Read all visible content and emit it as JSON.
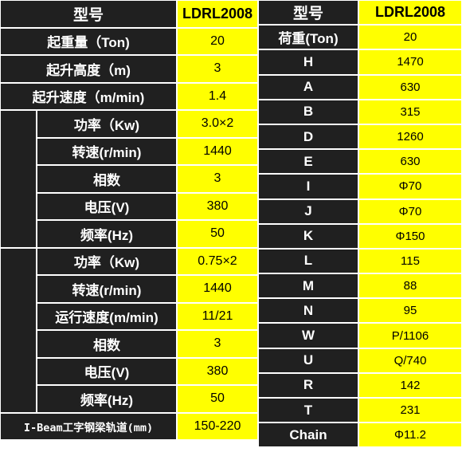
{
  "left_table": {
    "header": {
      "key": "型号",
      "value": "LDRL2008"
    },
    "top_rows": [
      {
        "key": "起重量（Ton)",
        "value": "20"
      },
      {
        "key": "起升高度（m)",
        "value": "3"
      },
      {
        "key": "起升速度（m/min)",
        "value": "1.4"
      }
    ],
    "group1_rows": [
      {
        "key": "功率（Kw)",
        "value": "3.0×2"
      },
      {
        "key": "转速(r/min)",
        "value": "1440"
      },
      {
        "key": "相数",
        "value": "3"
      },
      {
        "key": "电压(V)",
        "value": "380"
      },
      {
        "key": "频率(Hz)",
        "value": "50"
      }
    ],
    "group2_rows": [
      {
        "key": "功率（Kw)",
        "value": "0.75×2"
      },
      {
        "key": "转速(r/min)",
        "value": "1440"
      },
      {
        "key": "运行速度(m/min)",
        "value": "11/21"
      },
      {
        "key": "相数",
        "value": "3"
      },
      {
        "key": "电压(V)",
        "value": "380"
      },
      {
        "key": "频率(Hz)",
        "value": "50"
      }
    ],
    "bottom_row": {
      "key": "I-Beam工字钢梁轨道(mm)",
      "value": "150-220"
    }
  },
  "right_table": {
    "header": {
      "key": "型号",
      "value": "LDRL2008"
    },
    "rows": [
      {
        "key": "荷重(Ton)",
        "value": "20"
      },
      {
        "key": "H",
        "value": "1470"
      },
      {
        "key": "A",
        "value": "630"
      },
      {
        "key": "B",
        "value": "315"
      },
      {
        "key": "D",
        "value": "1260"
      },
      {
        "key": "E",
        "value": "630"
      },
      {
        "key": "I",
        "value": "Φ70"
      },
      {
        "key": "J",
        "value": "Φ70"
      },
      {
        "key": "K",
        "value": "Φ150"
      },
      {
        "key": "L",
        "value": "115"
      },
      {
        "key": "M",
        "value": "88"
      },
      {
        "key": "N",
        "value": "95"
      },
      {
        "key": "W",
        "value": "P/1106"
      },
      {
        "key": "U",
        "value": "Q/740"
      },
      {
        "key": "R",
        "value": "142"
      },
      {
        "key": "T",
        "value": "231"
      },
      {
        "key": "Chain",
        "value": "Φ11.2"
      }
    ]
  },
  "colors": {
    "dark_cell": "#202020",
    "value_cell": "#ffff00",
    "grid": "#ffffff"
  }
}
